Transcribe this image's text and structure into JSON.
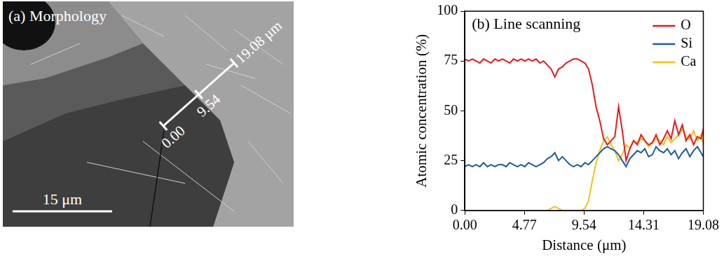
{
  "image_panel": {
    "title": "(a) Morphology",
    "scale_bar": "15 μm",
    "scan_line_labels": [
      "0.00",
      "9.54",
      "19.08 μm"
    ]
  },
  "chart_data": {
    "type": "line",
    "title": "(b) Line scanning",
    "xlabel": "Distance (μm)",
    "ylabel": "Atomic concentration (%)",
    "x": [
      0,
      0.3,
      0.6,
      0.9,
      1.2,
      1.5,
      1.8,
      2.1,
      2.4,
      2.7,
      3.0,
      3.3,
      3.6,
      3.9,
      4.2,
      4.5,
      4.8,
      5.1,
      5.4,
      5.7,
      6.0,
      6.3,
      6.6,
      6.9,
      7.2,
      7.5,
      7.8,
      8.1,
      8.4,
      8.7,
      9.0,
      9.3,
      9.6,
      9.9,
      10.2,
      10.5,
      10.8,
      11.1,
      11.4,
      11.7,
      12.0,
      12.3,
      12.6,
      12.9,
      13.2,
      13.5,
      13.8,
      14.1,
      14.4,
      14.7,
      15.0,
      15.3,
      15.6,
      15.9,
      16.2,
      16.5,
      16.8,
      17.1,
      17.4,
      17.7,
      18.0,
      18.3,
      18.6,
      18.9,
      19.08
    ],
    "series": [
      {
        "name": "O",
        "color": "#e8191c",
        "values": [
          76,
          75,
          76,
          75,
          74,
          76,
          75,
          74,
          76,
          75,
          76,
          75,
          74,
          76,
          75,
          76,
          75,
          76,
          75,
          76,
          74,
          75,
          73,
          71,
          67,
          71,
          72,
          74,
          75,
          76,
          76,
          75,
          74,
          71,
          63,
          52,
          45,
          36,
          33,
          35,
          37,
          52,
          40,
          25,
          31,
          35,
          33,
          38,
          35,
          33,
          34,
          38,
          33,
          36,
          40,
          36,
          45,
          38,
          43,
          35,
          38,
          33,
          37,
          36,
          41
        ]
      },
      {
        "name": "Si",
        "color": "#1f5c99",
        "values": [
          22,
          23,
          22,
          23,
          22,
          24,
          22,
          23,
          22,
          23,
          23,
          22,
          24,
          23,
          22,
          23,
          22,
          24,
          23,
          22,
          23,
          24,
          26,
          27,
          29,
          25,
          27,
          25,
          23,
          22,
          23,
          22,
          24,
          23,
          25,
          27,
          29,
          31,
          32,
          31,
          30,
          28,
          25,
          22,
          26,
          28,
          30,
          29,
          31,
          27,
          28,
          32,
          30,
          29,
          31,
          28,
          30,
          26,
          29,
          31,
          27,
          30,
          32,
          29,
          27
        ]
      },
      {
        "name": "Ca",
        "color": "#f5c01a",
        "values": [
          0,
          0,
          0,
          0,
          0,
          0,
          0,
          0,
          0,
          0,
          0,
          0,
          0,
          0,
          0,
          0,
          0,
          0,
          0,
          0,
          0,
          0,
          0,
          1,
          2,
          1,
          0,
          0,
          0,
          0,
          0,
          0,
          1,
          5,
          15,
          24,
          30,
          35,
          37,
          33,
          30,
          25,
          28,
          33,
          31,
          35,
          34,
          36,
          35,
          32,
          34,
          36,
          35,
          33,
          37,
          34,
          36,
          38,
          41,
          37,
          36,
          40,
          35,
          38,
          33
        ]
      }
    ],
    "xlim": [
      0,
      19.08
    ],
    "xticks": [
      {
        "value": 0,
        "label": "0.00"
      },
      4.77,
      9.54,
      14.31,
      19.08
    ],
    "ylim": [
      0,
      100
    ],
    "yticks": [
      0,
      25,
      50,
      75,
      100
    ],
    "grid": false,
    "legend": "upper right",
    "marker": "none",
    "line_style": "solid"
  }
}
